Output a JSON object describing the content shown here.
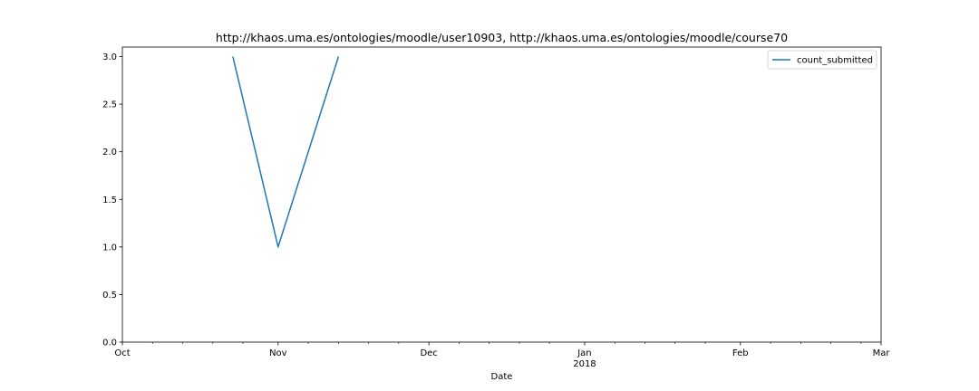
{
  "chart_data": {
    "type": "line",
    "title": "http://khaos.uma.es/ontologies/moodle/user10903, http://khaos.uma.es/ontologies/moodle/course70",
    "xlabel": "Date",
    "ylabel": "",
    "series": [
      {
        "name": "count_submitted",
        "x": [
          "2017-10-23",
          "2017-11-01",
          "2017-11-13"
        ],
        "values": [
          3,
          1,
          3
        ],
        "color": "#1f77b4"
      }
    ],
    "xlim": [
      "2017-10-01",
      "2018-03-01"
    ],
    "ylim": [
      0.0,
      3.1
    ],
    "x_major_ticks": [
      {
        "date": "2017-10-01",
        "label": "Oct",
        "sublabel": ""
      },
      {
        "date": "2017-11-01",
        "label": "Nov",
        "sublabel": ""
      },
      {
        "date": "2017-12-01",
        "label": "Dec",
        "sublabel": ""
      },
      {
        "date": "2018-01-01",
        "label": "Jan",
        "sublabel": "2018"
      },
      {
        "date": "2018-02-01",
        "label": "Feb",
        "sublabel": ""
      },
      {
        "date": "2018-03-01",
        "label": "Mar",
        "sublabel": ""
      }
    ],
    "x_minor_ticks": [
      "2017-10-07",
      "2017-10-13",
      "2017-10-19",
      "2017-10-25",
      "2017-11-07",
      "2017-11-13",
      "2017-11-19",
      "2017-11-25",
      "2017-12-07",
      "2017-12-13",
      "2017-12-19",
      "2017-12-25",
      "2018-01-07",
      "2018-01-13",
      "2018-01-19",
      "2018-01-25",
      "2018-02-07",
      "2018-02-13",
      "2018-02-19",
      "2018-02-25"
    ],
    "y_ticks": [
      0.0,
      0.5,
      1.0,
      1.5,
      2.0,
      2.5,
      3.0
    ],
    "y_tick_labels": [
      "0.0",
      "0.5",
      "1.0",
      "1.5",
      "2.0",
      "2.5",
      "3.0"
    ],
    "grid": false,
    "legend_position": "top-right"
  }
}
